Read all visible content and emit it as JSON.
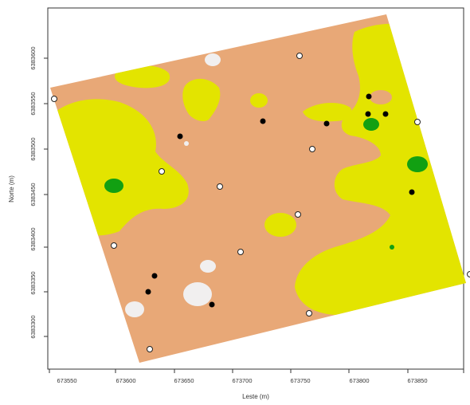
{
  "axes": {
    "xlabel": "Leste (m)",
    "ylabel": "Norte (m)",
    "x_ticks": [
      "673550",
      "673600",
      "673650",
      "673700",
      "673750",
      "673800",
      "673850"
    ],
    "y_ticks": [
      "6383300",
      "6383350",
      "6383400",
      "6383450",
      "6383500",
      "6383550",
      "6383600"
    ]
  },
  "colors": {
    "background": "#ffffff",
    "frame": "#333333",
    "class_tan": "#e8a877",
    "class_yellow": "#e3e400",
    "class_green": "#12a012",
    "class_white": "#f1efef",
    "point_open_fill": "#ffffff",
    "point_filled_fill": "#000000"
  },
  "legend": null,
  "map": {
    "type": "kriging-class-map",
    "zones": [
      "tan",
      "yellow",
      "green",
      "white"
    ],
    "open_points_count": 12,
    "filled_points_count": 11
  }
}
